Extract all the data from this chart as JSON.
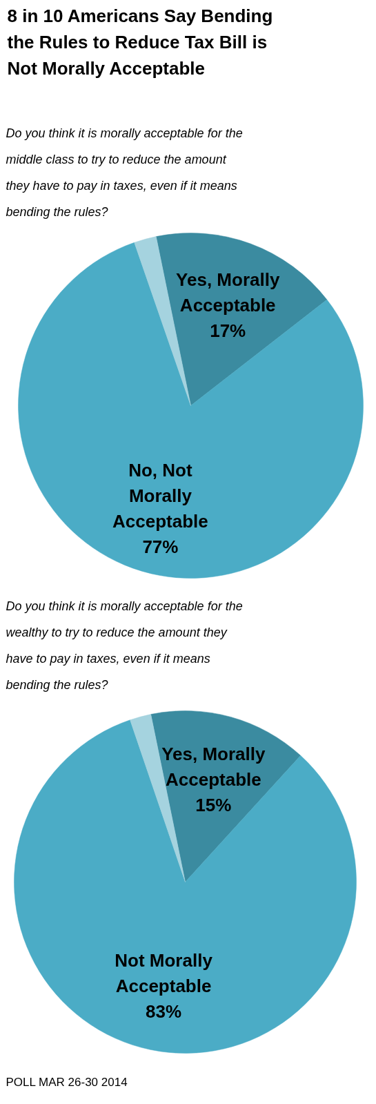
{
  "chart_data": [
    {
      "type": "pie",
      "title": "8 in 10 Americans Say Bending\nthe Rules to Reduce Tax Bill is\nNot Morally Acceptable",
      "subtitle": "Do you think it is morally acceptable for the\nmiddle class to try to reduce the amount\nthey have to pay in taxes, even if it means\nbending the rules?",
      "categories": [
        "Yes, Morally\nAcceptable",
        "No, Not\nMorally\nAcceptable",
        null
      ],
      "values": [
        17,
        77,
        2
      ],
      "colors": [
        "#3b8ba0",
        "#4bacc6",
        "#a5d3df"
      ],
      "value_labels": [
        "17%",
        "77%",
        null
      ]
    },
    {
      "type": "pie",
      "subtitle": "Do you think it is morally acceptable for the\nwealthy to try to reduce the amount they\nhave to pay in taxes, even if it means\nbending the rules?",
      "categories": [
        "Yes, Morally\nAcceptable",
        "Not Morally\nAcceptable",
        null
      ],
      "values": [
        15,
        83,
        2
      ],
      "colors": [
        "#3b8ba0",
        "#4bacc6",
        "#a5d3df"
      ],
      "value_labels": [
        "15%",
        "83%",
        null
      ],
      "annotations": [
        "POLL MAR 26-30 2014"
      ]
    }
  ]
}
